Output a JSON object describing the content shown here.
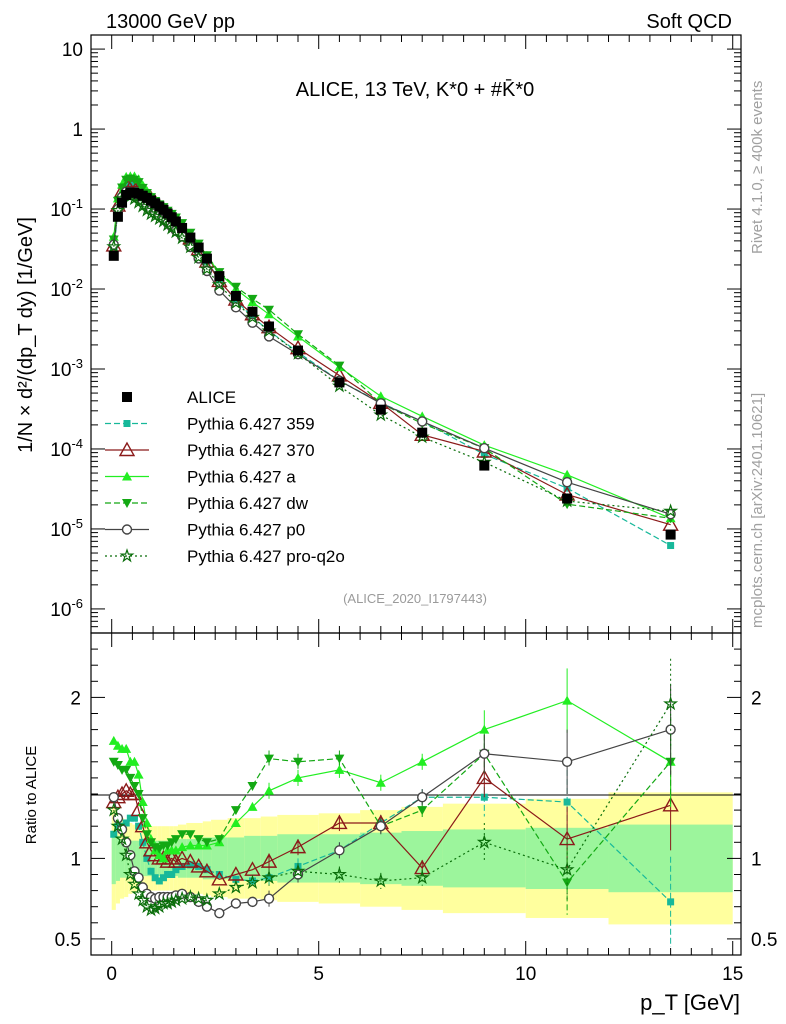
{
  "header": {
    "left": "13000 GeV pp",
    "right": "Soft QCD"
  },
  "side_text": {
    "rivet": "Rivet 4.1.0, ≥ 400k events",
    "mcplots": "mcplots.cern.ch [arXiv:2401.10621]"
  },
  "colors": {
    "data": "#000000",
    "p359": "#17b89a",
    "p370": "#8b1a1a",
    "pa": "#22ee22",
    "pdw": "#13a813",
    "pp0": "#444444",
    "pq2o": "#0a6e0a",
    "band_inner": "#9cf59c",
    "band_outer": "#ffff9e"
  },
  "chart_data": [
    {
      "type": "line",
      "title": "ALICE, 13 TeV, K*0 + #K̄*0",
      "ylabel": "1/N × d²/(dp_T dy) [1/GeV]",
      "xlabel": "p_T [GeV]",
      "xlim": [
        -0.5,
        15.2
      ],
      "ylim": [
        5e-07,
        15
      ],
      "yscale": "log",
      "analysis_id": "(ALICE_2020_I1797443)",
      "y_tick_labels": [
        "10",
        "1",
        "10^-1",
        "10^-2",
        "10^-3",
        "10^-4",
        "10^-5",
        "10^-6"
      ],
      "x": [
        0.05,
        0.15,
        0.25,
        0.35,
        0.45,
        0.55,
        0.65,
        0.75,
        0.85,
        0.95,
        1.05,
        1.15,
        1.25,
        1.35,
        1.45,
        1.55,
        1.7,
        1.9,
        2.1,
        2.3,
        2.6,
        3.0,
        3.4,
        3.8,
        4.5,
        5.5,
        6.5,
        7.5,
        9.0,
        11.0,
        13.5
      ],
      "data": {
        "name": "ALICE",
        "values": [
          0.026,
          0.08,
          0.12,
          0.15,
          0.16,
          0.16,
          0.155,
          0.147,
          0.138,
          0.128,
          0.118,
          0.108,
          0.098,
          0.088,
          0.079,
          0.07,
          0.058,
          0.044,
          0.033,
          0.024,
          0.0145,
          0.0082,
          0.0052,
          0.0034,
          0.0017,
          0.00068,
          0.00031,
          0.00016,
          6.2e-05,
          2.4e-05,
          8.5e-06
        ]
      },
      "legend": [
        "ALICE",
        "Pythia 6.427 359",
        "Pythia 6.427 370",
        "Pythia 6.427 a",
        "Pythia 6.427 dw",
        "Pythia 6.427 p0",
        "Pythia 6.427 pro-q2o"
      ],
      "ratios": [
        {
          "name": "Pythia 6.427 359",
          "style": "square",
          "dash": "6,3",
          "values": [
            1.15,
            1.2,
            1.2,
            1.22,
            1.25,
            1.25,
            1.2,
            1.1,
            1.0,
            0.92,
            0.88,
            0.86,
            0.88,
            0.9,
            0.9,
            0.93,
            0.95,
            0.96,
            0.95,
            0.93,
            0.9,
            0.87,
            0.86,
            0.88,
            0.95,
            1.05,
            1.22,
            1.38,
            1.38,
            1.35,
            0.73
          ]
        },
        {
          "name": "Pythia 6.427 370",
          "style": "triangle-open",
          "dash": "",
          "values": [
            1.35,
            1.38,
            1.4,
            1.42,
            1.4,
            1.4,
            1.3,
            1.2,
            1.1,
            1.05,
            1.02,
            1.0,
            1.0,
            0.98,
            1.0,
            0.98,
            1.0,
            0.98,
            0.95,
            0.92,
            0.87,
            0.9,
            0.93,
            0.98,
            1.07,
            1.22,
            1.22,
            0.94,
            1.5,
            1.12,
            1.33
          ]
        },
        {
          "name": "Pythia 6.427 a",
          "style": "triangle",
          "dash": "",
          "values": [
            1.73,
            1.7,
            1.68,
            1.68,
            1.6,
            1.6,
            1.52,
            1.35,
            1.22,
            1.12,
            1.05,
            1.02,
            1.0,
            1.05,
            1.05,
            1.05,
            1.07,
            1.08,
            1.08,
            1.08,
            1.1,
            1.22,
            1.32,
            1.42,
            1.5,
            1.55,
            1.47,
            1.6,
            1.8,
            1.98,
            1.6
          ]
        },
        {
          "name": "Pythia 6.427 dw",
          "style": "triangle-down",
          "dash": "6,3",
          "values": [
            1.6,
            1.58,
            1.55,
            1.55,
            1.5,
            1.45,
            1.4,
            1.25,
            1.15,
            1.1,
            1.07,
            1.06,
            1.08,
            1.08,
            1.1,
            1.12,
            1.15,
            1.15,
            1.12,
            1.1,
            1.12,
            1.3,
            1.45,
            1.62,
            1.6,
            1.62,
            1.2,
            1.3,
            1.65,
            0.85,
            1.6
          ]
        },
        {
          "name": "Pythia 6.427 p0",
          "style": "circle-open",
          "dash": "",
          "values": [
            1.38,
            1.25,
            1.18,
            1.1,
            1.02,
            0.92,
            0.88,
            0.82,
            0.78,
            0.76,
            0.75,
            0.76,
            0.76,
            0.76,
            0.76,
            0.77,
            0.78,
            0.76,
            0.73,
            0.7,
            0.66,
            0.72,
            0.73,
            0.75,
            0.9,
            1.05,
            1.2,
            1.38,
            1.65,
            1.6,
            1.8
          ]
        },
        {
          "name": "Pythia 6.427 pro-q2o",
          "style": "star",
          "dash": "2,3",
          "values": [
            1.3,
            1.2,
            1.12,
            1.02,
            0.9,
            0.84,
            0.78,
            0.74,
            0.7,
            0.68,
            0.69,
            0.7,
            0.72,
            0.72,
            0.73,
            0.74,
            0.75,
            0.76,
            0.75,
            0.74,
            0.78,
            0.82,
            0.85,
            0.88,
            0.92,
            0.9,
            0.86,
            0.88,
            1.1,
            0.93,
            1.96
          ]
        }
      ]
    },
    {
      "type": "line",
      "ylabel": "Ratio to ALICE",
      "xlabel": "p_T [GeV]",
      "xlim": [
        -0.5,
        15.2
      ],
      "ylim": [
        0.4,
        2.4
      ],
      "x_tick_labels": [
        "0",
        "5",
        "10",
        "15"
      ],
      "y_tick_labels": [
        "0.5",
        "1",
        "2"
      ],
      "bands_x": [
        0.0,
        0.1,
        0.2,
        0.3,
        0.4,
        0.5,
        0.6,
        0.7,
        0.8,
        0.9,
        1.0,
        1.1,
        1.2,
        1.3,
        1.4,
        1.5,
        1.6,
        1.8,
        2.0,
        2.2,
        2.4,
        2.8,
        3.2,
        3.6,
        4.0,
        5.0,
        6.0,
        7.0,
        8.0,
        10.0,
        12.0,
        15.0
      ],
      "band_inner": [
        0.16,
        0.14,
        0.12,
        0.12,
        0.11,
        0.11,
        0.11,
        0.11,
        0.11,
        0.11,
        0.11,
        0.11,
        0.11,
        0.11,
        0.11,
        0.11,
        0.12,
        0.12,
        0.12,
        0.13,
        0.13,
        0.13,
        0.14,
        0.14,
        0.15,
        0.15,
        0.16,
        0.17,
        0.18,
        0.19,
        0.21
      ],
      "band_outer": [
        0.32,
        0.28,
        0.25,
        0.24,
        0.22,
        0.21,
        0.2,
        0.2,
        0.2,
        0.2,
        0.2,
        0.2,
        0.2,
        0.2,
        0.2,
        0.2,
        0.21,
        0.22,
        0.22,
        0.23,
        0.24,
        0.25,
        0.25,
        0.26,
        0.27,
        0.28,
        0.3,
        0.32,
        0.34,
        0.37,
        0.41
      ]
    }
  ]
}
